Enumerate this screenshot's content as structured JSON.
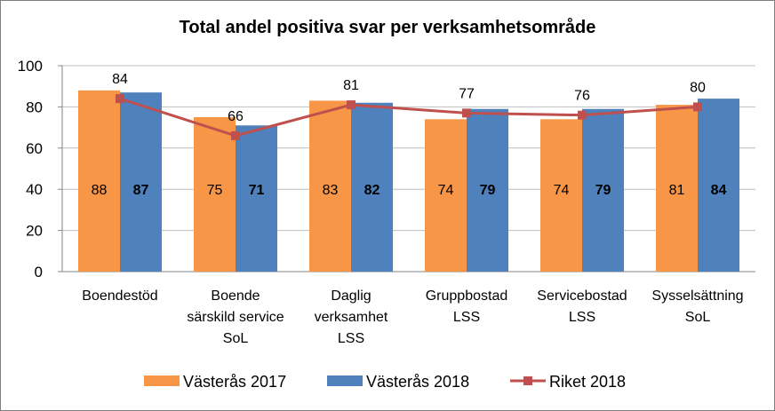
{
  "chart_data": {
    "type": "bar",
    "title": "Total andel positiva svar per verksamhetsområde",
    "categories": [
      [
        "Boendestöd"
      ],
      [
        "Boende",
        "särskild service",
        "SoL"
      ],
      [
        "Daglig",
        "verksamhet",
        "LSS"
      ],
      [
        "Gruppbostad",
        "LSS"
      ],
      [
        "Servicebostad",
        "LSS"
      ],
      [
        "Sysselsättning",
        "SoL"
      ]
    ],
    "series": [
      {
        "name": "Västerås 2017",
        "kind": "bar",
        "color": "#f79646",
        "values": [
          88,
          75,
          83,
          74,
          74,
          81
        ]
      },
      {
        "name": "Västerås 2018",
        "kind": "bar",
        "color": "#4f81bd",
        "values": [
          87,
          71,
          82,
          79,
          79,
          84
        ]
      },
      {
        "name": "Riket 2018",
        "kind": "line",
        "color": "#c0504d",
        "values": [
          84,
          66,
          81,
          77,
          76,
          80
        ]
      }
    ],
    "yticks": [
      0,
      20,
      40,
      60,
      80,
      100
    ],
    "ylim": [
      0,
      100
    ],
    "grid": true,
    "legend": "bottom"
  }
}
